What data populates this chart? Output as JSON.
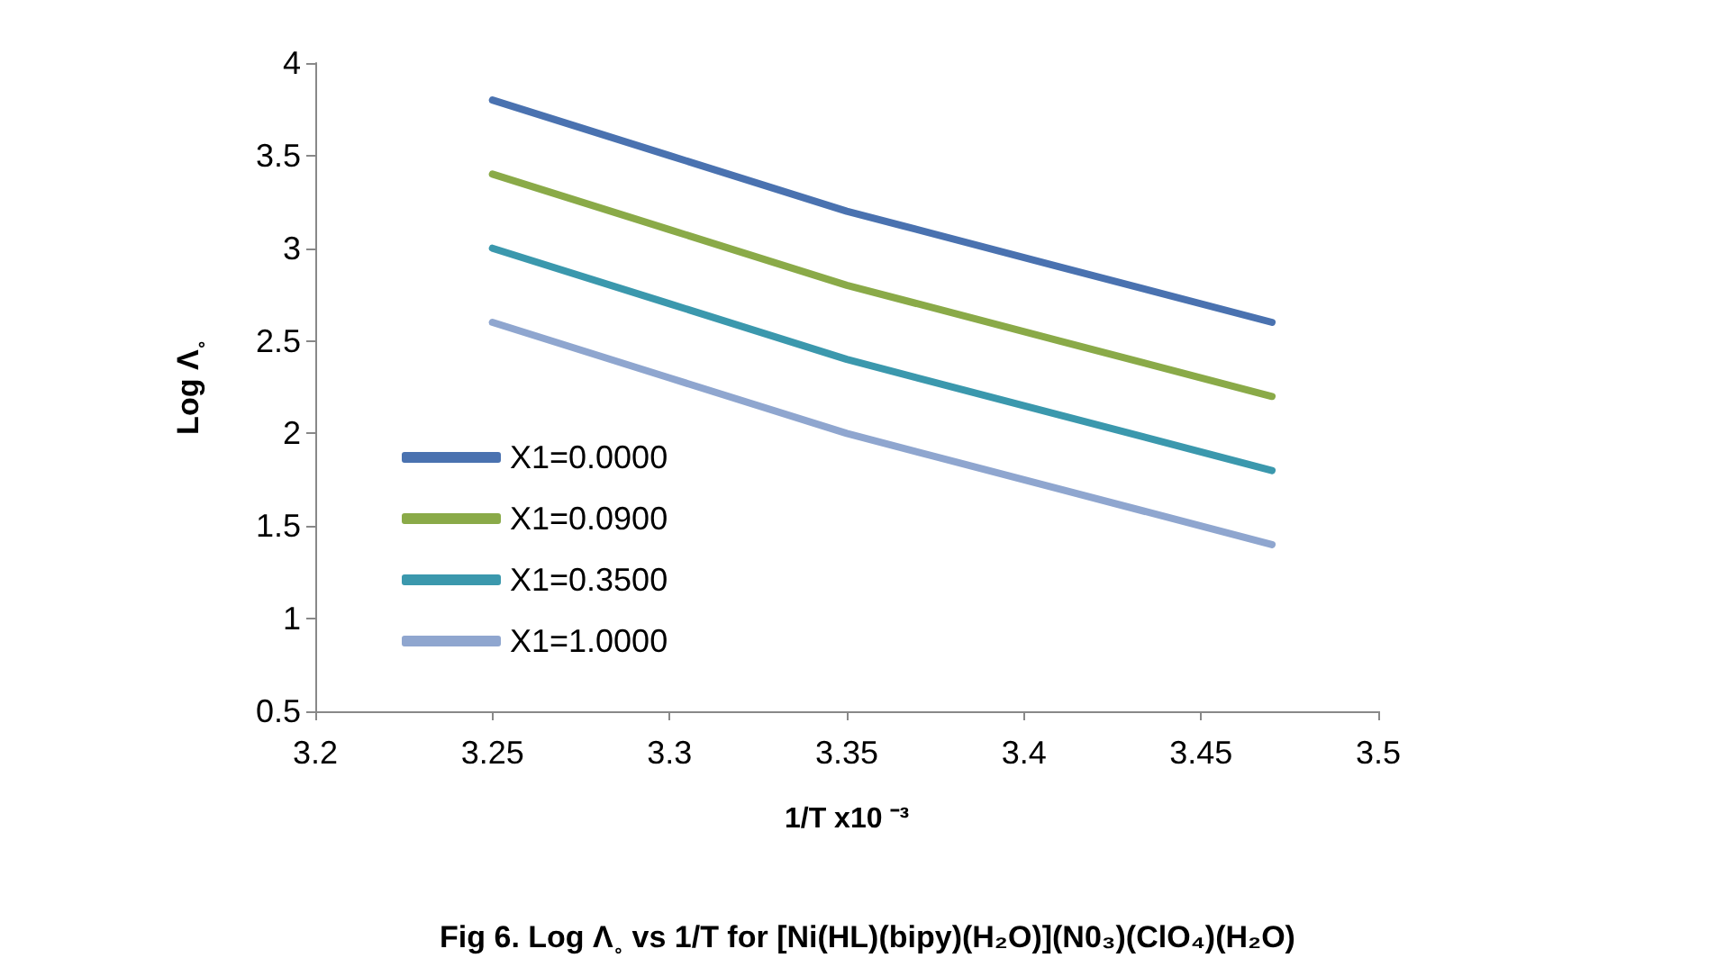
{
  "chart_data": {
    "type": "line",
    "title": "Fig 6. Log Λ˳ vs 1/T for [Ni(HL)(bipy)(H₂O)](N0₃)(ClO₄)(H₂O)",
    "xlabel": "1/T x10 ⁻³",
    "ylabel": "Log Λ˳",
    "x": [
      3.25,
      3.3,
      3.35,
      3.41,
      3.47
    ],
    "series": [
      {
        "name": "X1=0.0000",
        "color": "#4a72b0",
        "values": [
          3.8,
          3.5,
          3.2,
          2.9,
          2.6
        ]
      },
      {
        "name": "X1=0.0900",
        "color": "#8aaa48",
        "values": [
          3.4,
          3.1,
          2.8,
          2.5,
          2.2
        ]
      },
      {
        "name": "X1=0.3500",
        "color": "#3b98ad",
        "values": [
          3.0,
          2.7,
          2.4,
          2.1,
          1.8
        ]
      },
      {
        "name": "X1=1.0000",
        "color": "#8fa6cf",
        "values": [
          2.6,
          2.3,
          2.0,
          1.7,
          1.4
        ]
      }
    ],
    "xlim": [
      3.2,
      3.5
    ],
    "xticks": [
      3.2,
      3.25,
      3.3,
      3.35,
      3.4,
      3.45,
      3.5
    ],
    "ylim": [
      0.5,
      4
    ],
    "yticks": [
      0.5,
      1,
      1.5,
      2,
      2.5,
      3,
      3.5,
      4
    ],
    "grid": false,
    "legend": "bottom left",
    "marker": "none",
    "line_style": "solid"
  }
}
